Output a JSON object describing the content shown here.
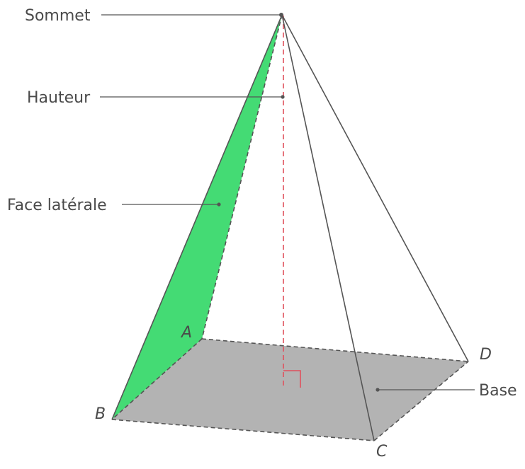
{
  "labels": {
    "sommet": "Sommet",
    "hauteur": "Hauteur",
    "face": "Face latérale",
    "base": "Base"
  },
  "vertices": {
    "a": "A",
    "b": "B",
    "c": "C",
    "d": "D"
  },
  "colors": {
    "face_fill": "#44db74",
    "base_fill": "#b3b3b3",
    "edge": "#555555",
    "height_line": "#e0505c",
    "leader": "#555555"
  }
}
